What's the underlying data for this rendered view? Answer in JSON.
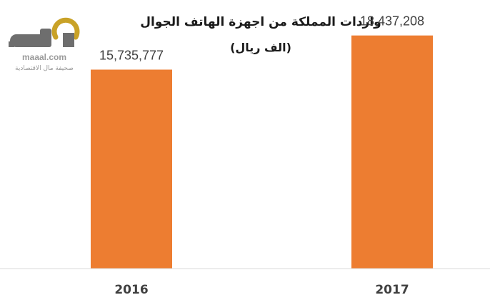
{
  "logo": {
    "wordmark": "maaal.com",
    "tagline": "صحيفة مال الاقتصادية"
  },
  "colors": {
    "bar": "#ed7d31",
    "baseline": "#d9d9d9",
    "logo_gold": "#c9a227",
    "logo_gray": "#6e6e6e"
  },
  "chart_data": {
    "type": "bar",
    "title": "واردات المملكة من اجهزة الهاتف الجوال",
    "subtitle": "(الف ريال)",
    "categories": [
      "2016",
      "2017"
    ],
    "values": [
      15735777,
      18437208
    ],
    "value_labels": [
      "15,735,777",
      "18,437,208"
    ],
    "xlabel": "",
    "ylabel": "",
    "ylim": [
      0,
      20000000
    ],
    "grid": false,
    "legend": "none"
  }
}
